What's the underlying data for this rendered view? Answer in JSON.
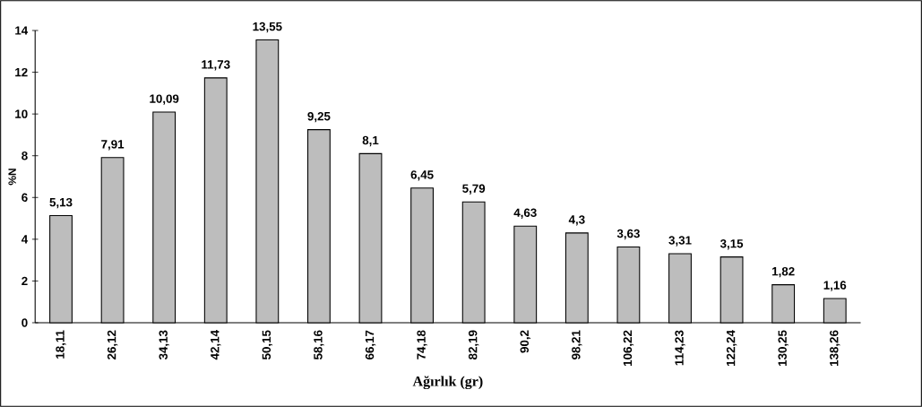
{
  "chart_data": {
    "type": "bar",
    "xlabel": "Ağırlık (gr)",
    "ylabel": "%N",
    "categories": [
      "18,11",
      "26,12",
      "34,13",
      "42,14",
      "50,15",
      "58,16",
      "66,17",
      "74,18",
      "82,19",
      "90,2",
      "98,21",
      "106,22",
      "114,23",
      "122,24",
      "130,25",
      "138,26"
    ],
    "values": [
      5.13,
      7.91,
      10.09,
      11.73,
      13.55,
      9.25,
      8.1,
      6.45,
      5.79,
      4.63,
      4.3,
      3.63,
      3.31,
      3.15,
      1.82,
      1.16
    ],
    "value_labels": [
      "5,13",
      "7,91",
      "10,09",
      "11,73",
      "13,55",
      "9,25",
      "8,1",
      "6,45",
      "5,79",
      "4,63",
      "4,3",
      "3,63",
      "3,31",
      "3,15",
      "1,82",
      "1,16"
    ],
    "color": "#bdbdbd",
    "ylim": [
      0,
      14
    ],
    "yticks": [
      0,
      2,
      4,
      6,
      8,
      10,
      12,
      14
    ],
    "grid": false
  }
}
